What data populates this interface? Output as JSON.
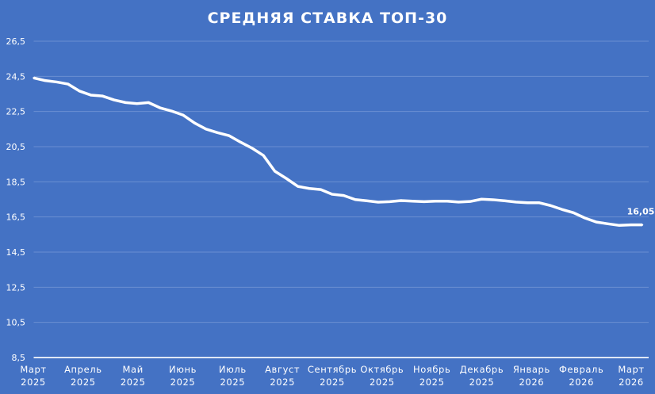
{
  "chart_data": {
    "type": "line",
    "title": "СРЕДНЯЯ СТАВКА ТОП-30",
    "xlabel": "",
    "ylabel": "",
    "ylim": [
      8.5,
      26.5
    ],
    "yticks": [
      "8,5",
      "10,5",
      "12,5",
      "14,5",
      "16,5",
      "18,5",
      "20,5",
      "22,5",
      "24,5",
      "26,5"
    ],
    "grid": true,
    "drop_lines": true,
    "x_labels": [
      [
        "Март",
        "2025"
      ],
      [
        "Апрель",
        "2025"
      ],
      [
        "Май",
        "2025"
      ],
      [
        "Июнь",
        "2025"
      ],
      [
        "Июль",
        "2025"
      ],
      [
        "Август",
        "2025"
      ],
      [
        "Сентябрь",
        "2025"
      ],
      [
        "Октябрь",
        "2025"
      ],
      [
        "Ноябрь",
        "2025"
      ],
      [
        "Декабрь",
        "2025"
      ],
      [
        "Январь",
        "2026"
      ],
      [
        "Февраль",
        "2026"
      ],
      [
        "Март",
        "2026"
      ]
    ],
    "values": [
      24.41,
      24.26,
      24.18,
      24.06,
      23.66,
      23.43,
      23.38,
      23.16,
      23.01,
      22.95,
      23.01,
      22.71,
      22.53,
      22.3,
      21.85,
      21.5,
      21.3,
      21.13,
      20.76,
      20.42,
      20.0,
      19.1,
      18.69,
      18.24,
      18.12,
      18.06,
      17.79,
      17.72,
      17.49,
      17.42,
      17.34,
      17.37,
      17.43,
      17.4,
      17.37,
      17.4,
      17.4,
      17.35,
      17.38,
      17.51,
      17.48,
      17.42,
      17.35,
      17.31,
      17.31,
      17.15,
      16.93,
      16.74,
      16.44,
      16.21,
      16.11,
      16.02,
      16.05,
      16.05
    ],
    "last_label": "16,05",
    "colors": {
      "background": "#4472c4",
      "line": "#ffffff",
      "grid": "#6a8fd2"
    }
  }
}
